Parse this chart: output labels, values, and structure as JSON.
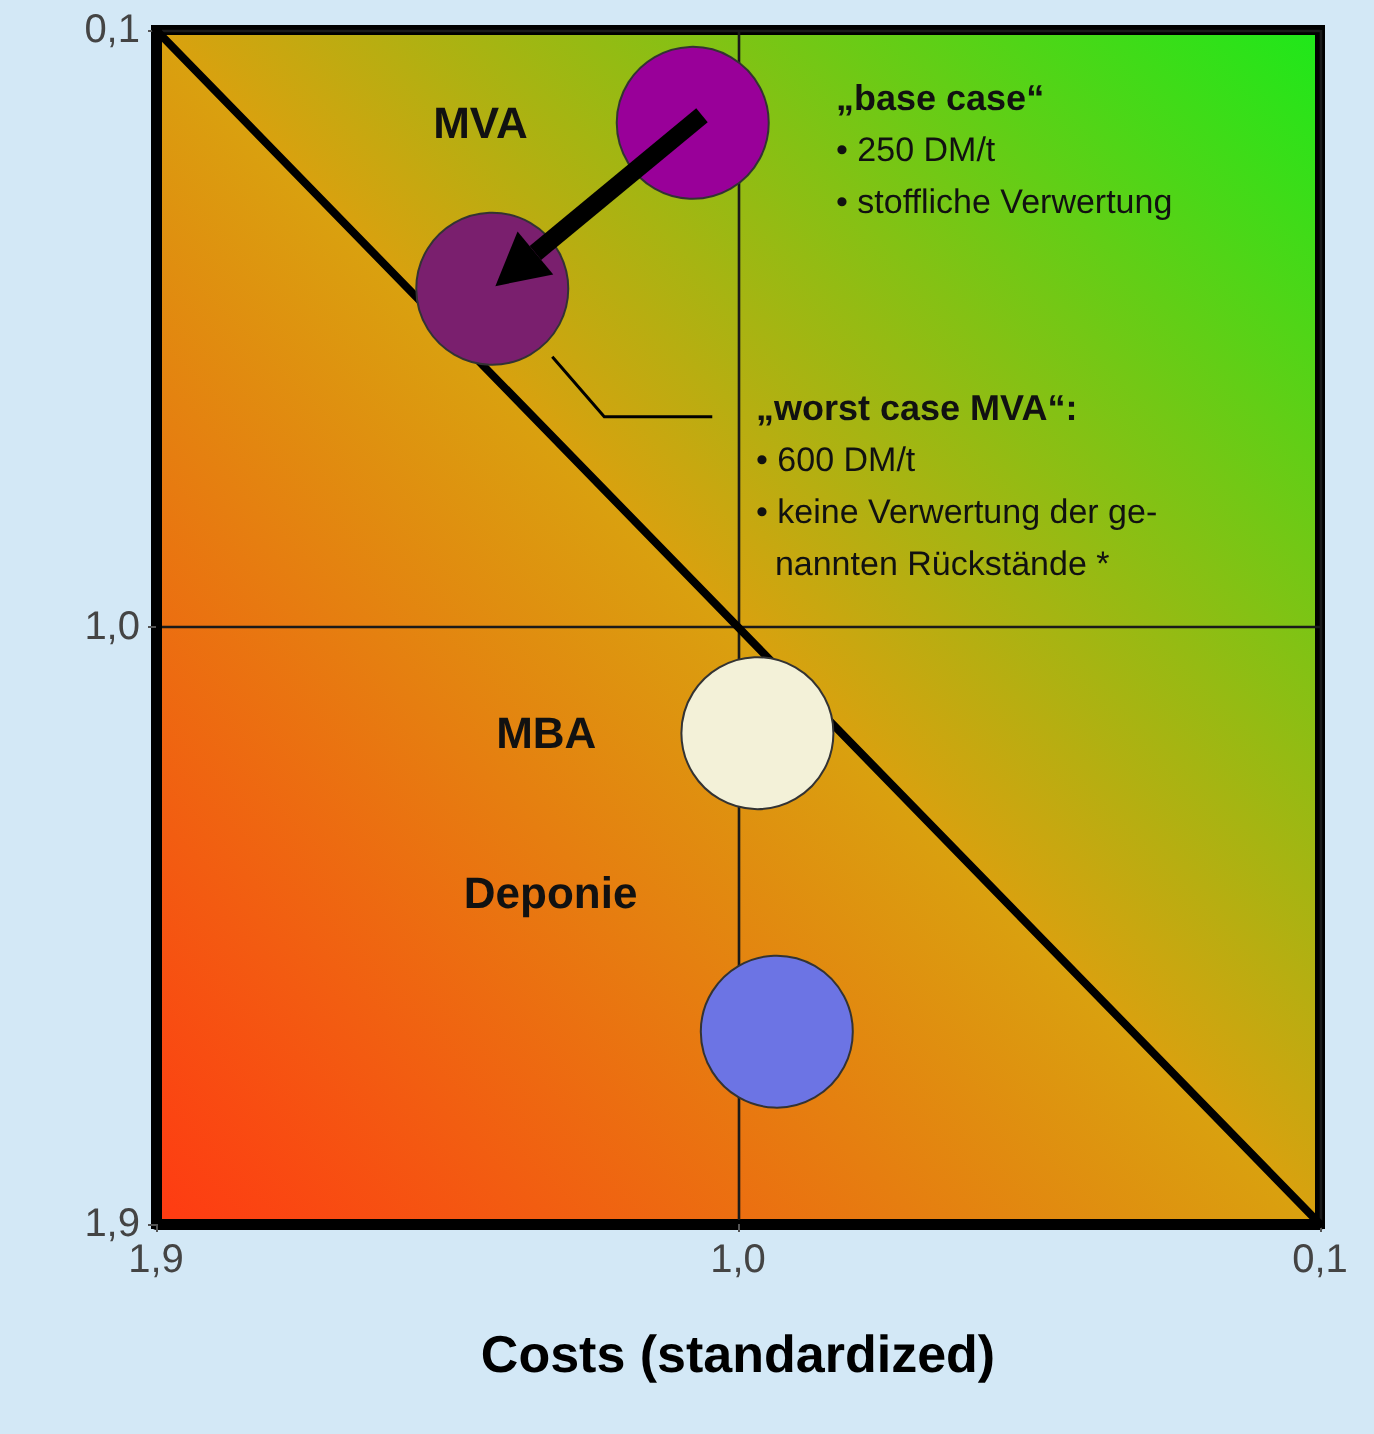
{
  "chart_data": {
    "type": "bubble",
    "xlabel": "Costs (standardized)",
    "xlim": [
      1.9,
      0.1
    ],
    "ylim": [
      1.9,
      0.1
    ],
    "xticks": [
      {
        "value": 1.9,
        "label": "1,9"
      },
      {
        "value": 1.0,
        "label": "1,0"
      },
      {
        "value": 0.1,
        "label": "0,1"
      }
    ],
    "yticks": [
      {
        "value": 1.9,
        "label": "1,9"
      },
      {
        "value": 1.0,
        "label": "1,0"
      },
      {
        "value": 0.1,
        "label": "0,1"
      }
    ],
    "grid": true,
    "legend": false,
    "marker": "circle",
    "series": [
      {
        "name": "MVA",
        "x": [
          1.07,
          1.38
        ],
        "values": [
          0.24,
          0.49
        ],
        "sizes": [
          1,
          1
        ],
        "colors": [
          "#990099",
          "#7a1f6e"
        ]
      },
      {
        "name": "MBA",
        "x": [
          0.97
        ],
        "values": [
          1.16
        ],
        "sizes": [
          1
        ],
        "color": "#f3f1d8"
      },
      {
        "name": "Deponie",
        "x": [
          0.94
        ],
        "values": [
          1.61
        ],
        "sizes": [
          1
        ],
        "color": "#6c74e4"
      },
      {
        "type": "line",
        "x": [
          1.9,
          0.1
        ],
        "values": [
          0.1,
          1.9
        ],
        "color": "#000000",
        "line_style": "solid",
        "marker": "none"
      }
    ],
    "annotations": [
      "„base case“\n• 250 DM/t\n• stoffliche Verwertung",
      "„worst case MVA“:\n• 600 DM/t\n• keine Verwertung der ge-\n  nannten Rückstände *"
    ]
  }
}
